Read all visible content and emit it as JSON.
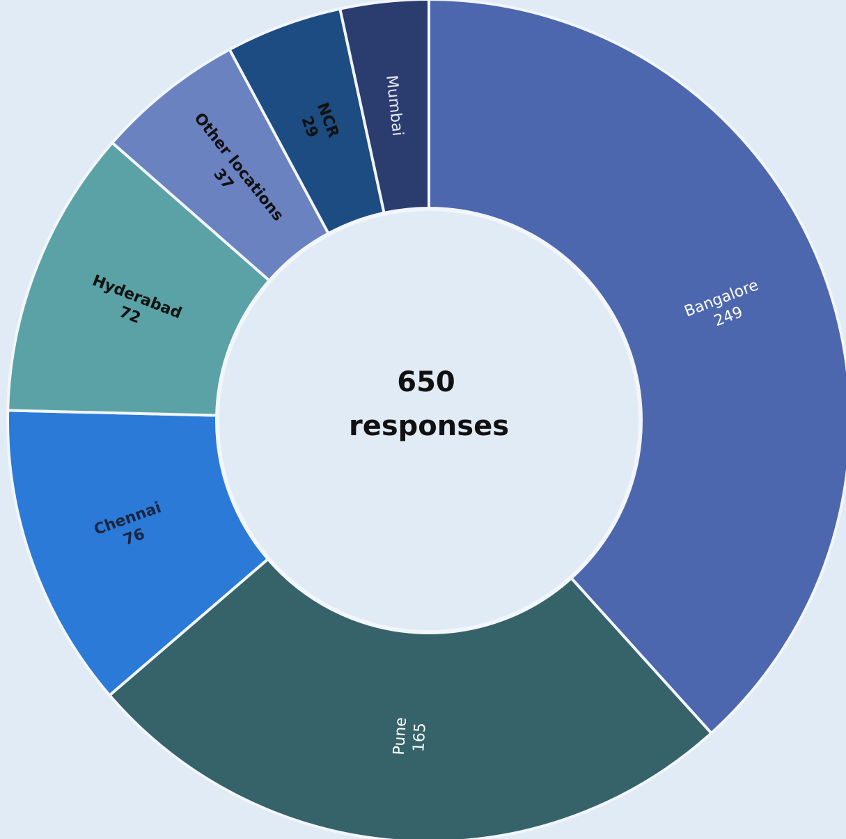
{
  "chart_data": {
    "type": "pie",
    "variant": "donut",
    "title": "",
    "center_value": "650",
    "center_label": "responses",
    "slices": [
      {
        "label": "Bangalore",
        "value": 249,
        "value_text": "249",
        "color": "#4d67ae",
        "text_color": "#ffffff",
        "bold": false
      },
      {
        "label": "Pune",
        "value": 165,
        "value_text": "165",
        "color": "#356369",
        "text_color": "#ffffff",
        "bold": false
      },
      {
        "label": "Chennai",
        "value": 76,
        "value_text": "76",
        "color": "#2b7ad8",
        "text_color": "#1a2540",
        "bold": true
      },
      {
        "label": "Hyderabad",
        "value": 72,
        "value_text": "72",
        "color": "#5aa2a6",
        "text_color": "#111111",
        "bold": true
      },
      {
        "label": "Other locations",
        "value": 37,
        "value_text": "37",
        "color": "#6a82c0",
        "text_color": "#111111",
        "bold": true
      },
      {
        "label": "NCR",
        "value": 29,
        "value_text": "29",
        "color": "#1c4c82",
        "text_color": "#111111",
        "bold": true
      },
      {
        "label": "Mumbai",
        "value": 22,
        "value_text": "",
        "color": "#2b3d6f",
        "text_color": "#e8ecf5",
        "bold": false
      }
    ],
    "start_angle_deg": 0,
    "direction": "clockwise",
    "background": "#e1ebf6"
  }
}
